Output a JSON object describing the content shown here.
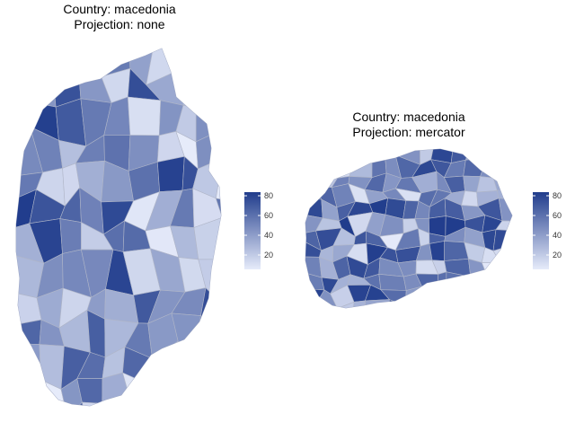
{
  "panels": [
    {
      "title_line1": "Country: macedonia",
      "title_line2": "Projection: none",
      "legend": {
        "ticks": [
          "80",
          "60",
          "40",
          "20"
        ],
        "tick_values": [
          80,
          60,
          40,
          20
        ],
        "min": 5,
        "max": 85
      }
    },
    {
      "title_line1": "Country: macedonia",
      "title_line2": "Projection: mercator",
      "legend": {
        "ticks": [
          "80",
          "60",
          "40",
          "20"
        ],
        "tick_values": [
          80,
          60,
          40,
          20
        ],
        "min": 5,
        "max": 85
      }
    }
  ],
  "colors": {
    "low": "#e6ebfa",
    "high": "#203c8c",
    "border": "#b0b6c8"
  }
}
